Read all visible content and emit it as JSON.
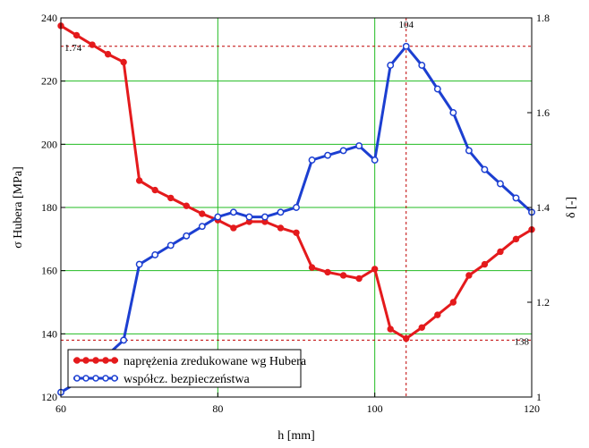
{
  "chart_data": {
    "type": "line",
    "xlabel": "h [mm]",
    "ylabel": "σ Hubera [MPa]",
    "y2label": "δ [-]",
    "xlim": [
      60,
      120
    ],
    "ylim": [
      120,
      240
    ],
    "y2lim": [
      1.0,
      1.8
    ],
    "xticks": [
      "60",
      "80",
      "100",
      "120"
    ],
    "yticks": [
      "120",
      "140",
      "160",
      "180",
      "200",
      "220",
      "240"
    ],
    "y2ticks": [
      "1",
      "1.2",
      "1.4",
      "1.6",
      "1.8"
    ],
    "grid": true,
    "legend_position": "bottom-left",
    "annotations": {
      "x_marker": "104",
      "y_marker_left": "138",
      "y_marker_right": "1.74"
    },
    "series": [
      {
        "name": "naprężenia zredukowane wg Hubera",
        "axis": "left",
        "color": "#e41a1c",
        "x": [
          60,
          62,
          64,
          66,
          68,
          70,
          72,
          74,
          76,
          78,
          80,
          82,
          84,
          86,
          88,
          90,
          92,
          94,
          96,
          98,
          100,
          102,
          104,
          106,
          108,
          110,
          112,
          114,
          116,
          118,
          120
        ],
        "values": [
          237.5,
          234.5,
          231.5,
          228.5,
          226,
          188.5,
          185.5,
          183,
          180.5,
          178,
          176,
          173.5,
          175.5,
          175.5,
          173.5,
          172,
          161,
          159.5,
          158.5,
          157.5,
          160.5,
          141.5,
          138.5,
          142,
          146,
          150,
          158.5,
          162,
          166,
          170,
          173
        ]
      },
      {
        "name": "współcz. bezpieczeństwa",
        "axis": "right",
        "color": "#1c3fd1",
        "x": [
          60,
          62,
          64,
          66,
          68,
          70,
          72,
          74,
          76,
          78,
          80,
          82,
          84,
          86,
          88,
          90,
          92,
          94,
          96,
          98,
          100,
          102,
          104,
          106,
          108,
          110,
          112,
          114,
          116,
          118,
          120
        ],
        "values": [
          1.01,
          1.03,
          1.06,
          1.09,
          1.12,
          1.28,
          1.3,
          1.32,
          1.34,
          1.36,
          1.38,
          1.39,
          1.38,
          1.38,
          1.39,
          1.4,
          1.5,
          1.51,
          1.52,
          1.53,
          1.5,
          1.7,
          1.74,
          1.7,
          1.65,
          1.6,
          1.52,
          1.48,
          1.45,
          1.42,
          1.39
        ]
      }
    ]
  }
}
